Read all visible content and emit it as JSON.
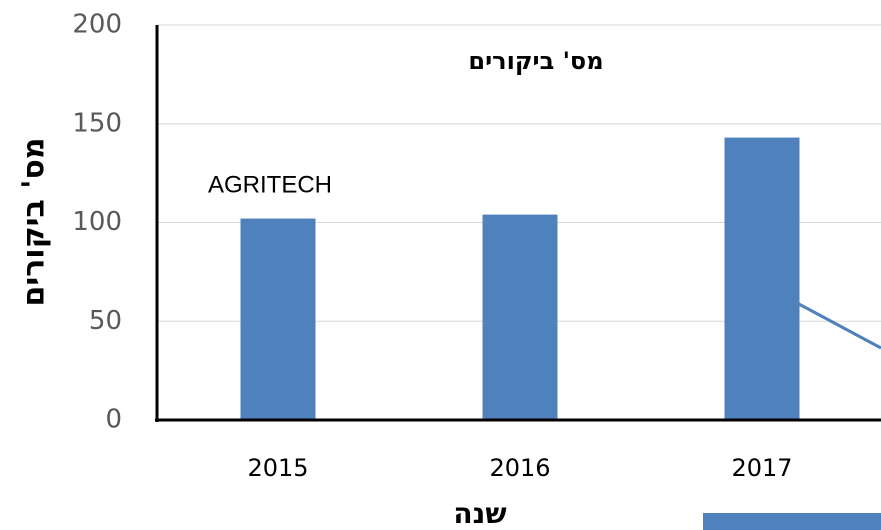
{
  "chart_data": {
    "type": "bar",
    "title": "מס' ביקורים",
    "x_label": "שנה",
    "y_label": "מס' ביקורים",
    "annotation": "AGRITECH",
    "categories": [
      "2015",
      "2016",
      "2017"
    ],
    "values": [
      102,
      104,
      143
    ],
    "color": "#4f81bd",
    "ylim": [
      0,
      200
    ],
    "yticks": [
      0,
      50,
      100,
      150,
      200
    ],
    "grid": true
  }
}
